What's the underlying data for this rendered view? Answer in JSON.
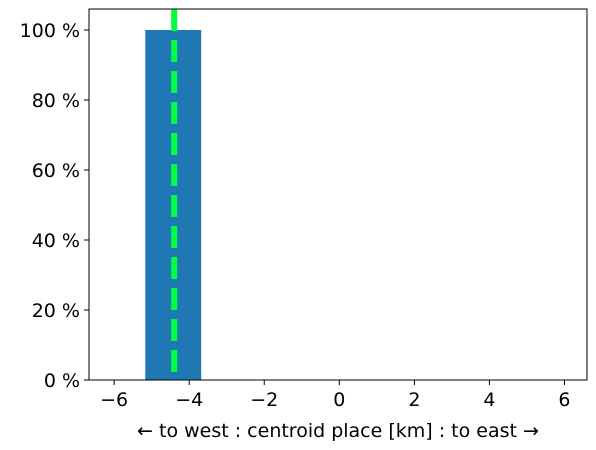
{
  "chart_data": {
    "type": "histogram",
    "xlabel": "← to west : centroid place [km] : to east →",
    "bins": [
      -5.17,
      -3.68
    ],
    "counts": [
      100
    ],
    "color": "#1f77b4",
    "vline": {
      "x": -4.4,
      "color": "#00ff40",
      "style": "dashed"
    },
    "xlim": [
      -6.67,
      6.6
    ],
    "xticks": [
      {
        "value": -6,
        "label": "−6"
      },
      {
        "value": -4,
        "label": "−4"
      },
      {
        "value": -2,
        "label": "−2"
      },
      0,
      2,
      4,
      6
    ],
    "ylim": [
      0,
      106
    ],
    "yticks": [
      {
        "value": 0,
        "label": "0 %"
      },
      {
        "value": 20,
        "label": "20 %"
      },
      {
        "value": 40,
        "label": "40 %"
      },
      {
        "value": 60,
        "label": "60 %"
      },
      {
        "value": 80,
        "label": "80 %"
      },
      {
        "value": 100,
        "label": "100 %"
      }
    ],
    "grid": false
  }
}
